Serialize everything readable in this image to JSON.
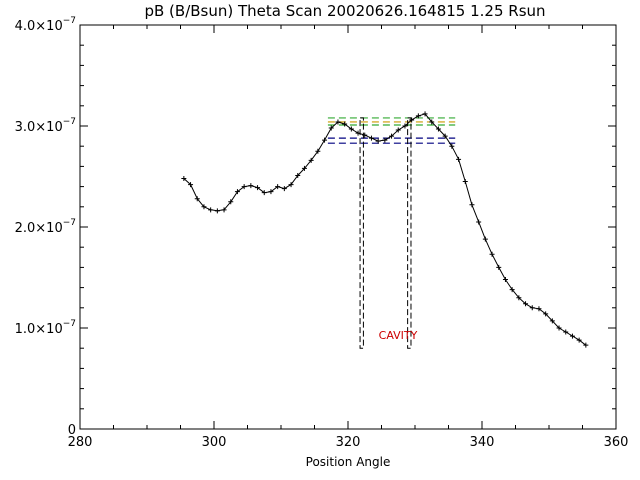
{
  "chart_data": {
    "type": "line",
    "title": "pB (B/Bsun) Theta Scan 20020626.164815 1.25 Rsun",
    "xlabel": "Position Angle",
    "ylabel": "",
    "xlim": [
      280,
      360
    ],
    "ylim": [
      0,
      4e-07
    ],
    "x_ticks": [
      280,
      300,
      320,
      340,
      360
    ],
    "x_tick_labels": [
      "280",
      "300",
      "320",
      "340",
      "360"
    ],
    "y_ticks": [
      0,
      1e-07,
      2e-07,
      3e-07,
      4e-07
    ],
    "y_tick_labels": [
      {
        "mantissa": "0",
        "exponent": ""
      },
      {
        "mantissa": "1.0×10",
        "exponent": "−7"
      },
      {
        "mantissa": "2.0×10",
        "exponent": "−7"
      },
      {
        "mantissa": "3.0×10",
        "exponent": "−7"
      },
      {
        "mantissa": "4.0×10",
        "exponent": "−7"
      }
    ],
    "grid": false,
    "colors": {
      "data": "#000000",
      "cavity": "#000000",
      "annotation": "#cc0000",
      "ref_green": "#33aa33",
      "ref_orange": "#cc9900",
      "ref_navy": "#000080"
    },
    "series": [
      {
        "values_x": [
          295.5,
          296.5,
          297.5,
          298.5,
          299.5,
          300.5,
          301.5,
          302.5,
          303.5,
          304.5,
          305.5,
          306.5,
          307.5,
          308.5,
          309.5,
          310.5,
          311.5,
          312.5,
          313.5,
          314.5,
          315.5,
          316.5,
          317.5,
          318.5,
          319.5,
          320.5,
          321.5,
          322.5,
          323.5,
          324.5,
          325.5,
          326.5,
          327.5,
          328.5,
          329.5,
          330.5,
          331.5,
          332.5,
          333.5,
          334.5,
          335.5,
          336.5,
          337.5,
          338.5,
          339.5,
          340.5,
          341.5,
          342.5,
          343.5,
          344.5,
          345.5,
          346.5,
          347.5,
          348.5,
          349.5,
          350.5,
          351.5,
          352.5,
          353.5,
          354.5,
          355.5
        ],
        "values_y": [
          2.48e-07,
          2.42e-07,
          2.28e-07,
          2.2e-07,
          2.17e-07,
          2.16e-07,
          2.17e-07,
          2.25e-07,
          2.35e-07,
          2.4e-07,
          2.41e-07,
          2.39e-07,
          2.34e-07,
          2.35e-07,
          2.4e-07,
          2.38e-07,
          2.42e-07,
          2.51e-07,
          2.58e-07,
          2.66e-07,
          2.75e-07,
          2.86e-07,
          2.98e-07,
          3.04e-07,
          3.02e-07,
          2.97e-07,
          2.93e-07,
          2.91e-07,
          2.88e-07,
          2.85e-07,
          2.86e-07,
          2.9e-07,
          2.96e-07,
          3e-07,
          3.06e-07,
          3.1e-07,
          3.12e-07,
          3.04e-07,
          2.97e-07,
          2.9e-07,
          2.8e-07,
          2.67e-07,
          2.45e-07,
          2.22e-07,
          2.05e-07,
          1.88e-07,
          1.73e-07,
          1.6e-07,
          1.48e-07,
          1.38e-07,
          1.3e-07,
          1.24e-07,
          1.2e-07,
          1.19e-07,
          1.14e-07,
          1.07e-07,
          1e-07,
          9.6e-08,
          9.2e-08,
          8.8e-08,
          8.3e-08
        ]
      }
    ],
    "cavity": {
      "label": "CAVITY",
      "boundaries": [
        {
          "x_left": 321.8,
          "x_right": 322.3
        },
        {
          "x_left": 328.9,
          "x_right": 329.4
        }
      ],
      "y_top": 3.08e-07,
      "y_bottom": 8e-08
    },
    "reference_lines": {
      "x_start": 317.0,
      "x_end": 336.0,
      "levels": [
        {
          "y": 3.08e-07,
          "color": "#33aa33"
        },
        {
          "y": 3.04e-07,
          "color": "#cc9900"
        },
        {
          "y": 3.01e-07,
          "color": "#33aa33"
        },
        {
          "y": 2.88e-07,
          "color": "#000080"
        },
        {
          "y": 2.83e-07,
          "color": "#000080"
        }
      ]
    }
  }
}
